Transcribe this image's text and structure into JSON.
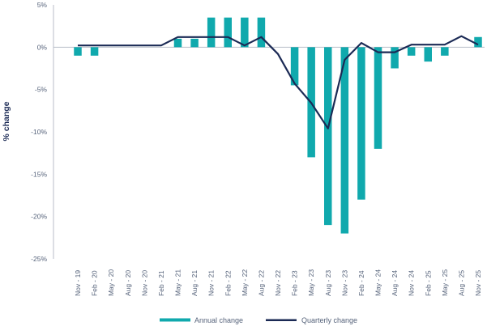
{
  "chart_data": {
    "type": "bar+line",
    "ylabel": "% change",
    "ylim": [
      -25,
      5
    ],
    "yticks": [
      5,
      0,
      -5,
      -10,
      -15,
      -20,
      -25
    ],
    "ytick_labels": [
      "5%",
      "0%",
      "-5%",
      "-10%",
      "-15%",
      "-20%",
      "-25%"
    ],
    "x": [
      "Nov - 19",
      "Feb - 20",
      "May - 20",
      "Aug - 20",
      "Nov - 20",
      "Feb - 21",
      "May - 21",
      "Aug - 21",
      "Nov - 21",
      "Feb - 22",
      "May - 22",
      "Aug - 22",
      "Nov - 22",
      "Feb - 23",
      "May - 23",
      "Aug - 23",
      "Nov - 23",
      "Feb - 24",
      "May - 24",
      "Aug - 24",
      "Nov - 24",
      "Feb - 25",
      "May - 25",
      "Aug - 25",
      "Nov - 25"
    ],
    "series": [
      {
        "name": "Annual change",
        "kind": "bar",
        "color": "#10a9ad",
        "values": [
          -1.0,
          -1.0,
          0,
          0,
          0,
          0,
          1.0,
          1.0,
          3.5,
          3.5,
          3.5,
          3.5,
          0,
          -4.5,
          -13.0,
          -21.0,
          -22.0,
          -18.0,
          -12.0,
          -2.5,
          -1.0,
          -1.7,
          -1.0,
          0,
          1.2
        ]
      },
      {
        "name": "Quarterly change",
        "kind": "line",
        "color": "#1b2a55",
        "values": [
          0.2,
          0.2,
          0.2,
          0.2,
          0.2,
          0.2,
          1.2,
          1.2,
          1.2,
          1.2,
          0.2,
          1.2,
          -0.8,
          -4.3,
          -6.6,
          -9.6,
          -1.5,
          0.5,
          -0.6,
          -0.6,
          0.3,
          0.3,
          0.3,
          1.3,
          0.3
        ]
      }
    ],
    "legend": "bottom"
  }
}
